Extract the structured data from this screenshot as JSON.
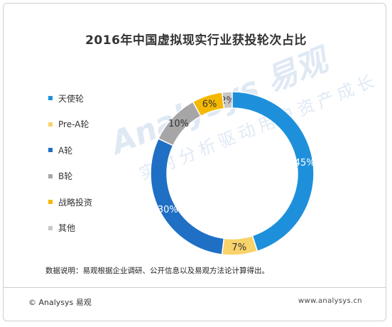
{
  "chart_data": {
    "type": "pie",
    "style": "donut",
    "title": "2016年中国虚拟现实行业获投轮次占比",
    "categories": [
      "天使轮",
      "Pre-A轮",
      "A轮",
      "B轮",
      "战略投资",
      "其他"
    ],
    "values": [
      45,
      7,
      30,
      10,
      6,
      2
    ],
    "labels": [
      "45%",
      "7%",
      "30%",
      "10%",
      "6%",
      "2%"
    ],
    "colors": [
      "#1E90DB",
      "#F8D26A",
      "#1F6FC5",
      "#A6A6A6",
      "#F5B800",
      "#C8C8C8"
    ],
    "legend_position": "left"
  },
  "note": "数据说明：易观根据企业调研、公开信息以及易观方法论计算得出。",
  "footer": {
    "brand": "© Analysys 易观",
    "url": "www.analysys.cn"
  },
  "watermark": {
    "main": "Analysys 易观",
    "sub": "实时分析驱动用户资产成长"
  }
}
